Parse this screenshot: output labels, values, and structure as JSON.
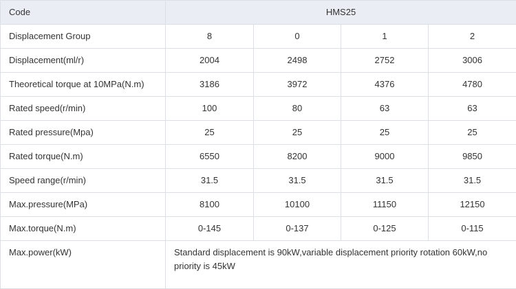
{
  "table": {
    "header": [
      "Code",
      "HMS25"
    ],
    "rows": [
      [
        "Displacement Group",
        "8",
        "0",
        "1",
        "2"
      ],
      [
        "Displacement(ml/r)",
        "2004",
        "2498",
        "2752",
        "3006"
      ],
      [
        "Theoretical torque at 10MPa(N.m)",
        "3186",
        "3972",
        "4376",
        "4780"
      ],
      [
        "Rated speed(r/min)",
        "100",
        "80",
        "63",
        "63"
      ],
      [
        "Rated pressure(Mpa)",
        "25",
        "25",
        "25",
        "25"
      ],
      [
        "Rated torque(N.m)",
        "6550",
        "8200",
        "9000",
        "9850"
      ],
      [
        "Speed range(r/min)",
        "31.5",
        "31.5",
        "31.5",
        "31.5"
      ],
      [
        "Max.pressure(MPa)",
        "8100",
        "10100",
        "11150",
        "12150"
      ],
      [
        "Max.torque(N.m)",
        "0-145",
        "0-137",
        "0-125",
        "0-115"
      ],
      [
        "Max.power(kW)",
        "Standard displacement is 90kW,variable displacement priority rotation 60kW,no priority is 45kW"
      ]
    ]
  }
}
